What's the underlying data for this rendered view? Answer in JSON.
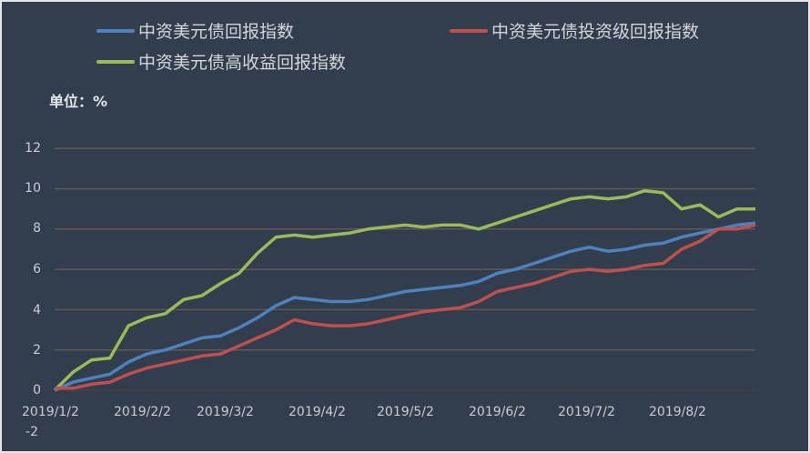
{
  "chart_data": {
    "type": "line",
    "title": "",
    "unit_label": "单位：%",
    "xlabel": "",
    "ylabel": "%",
    "ylim": [
      -2,
      12
    ],
    "yticks": [
      "12",
      "10",
      "8",
      "6",
      "4",
      "2",
      "0",
      "-2"
    ],
    "xticks": [
      "2019/1/2",
      "2019/2/2",
      "2019/3/2",
      "2019/4/2",
      "2019/5/2",
      "2019/6/2",
      "2019/7/2",
      "2019/8/2"
    ],
    "grid": true,
    "legend_position": "top",
    "x": [
      "2019/1/2",
      "2019/1/9",
      "2019/1/16",
      "2019/1/23",
      "2019/1/30",
      "2019/2/2",
      "2019/2/9",
      "2019/2/16",
      "2019/2/23",
      "2019/3/2",
      "2019/3/9",
      "2019/3/16",
      "2019/3/23",
      "2019/3/30",
      "2019/4/2",
      "2019/4/9",
      "2019/4/16",
      "2019/4/23",
      "2019/4/30",
      "2019/5/2",
      "2019/5/9",
      "2019/5/16",
      "2019/5/23",
      "2019/5/30",
      "2019/6/2",
      "2019/6/9",
      "2019/6/16",
      "2019/6/23",
      "2019/6/30",
      "2019/7/2",
      "2019/7/9",
      "2019/7/16",
      "2019/7/23",
      "2019/7/30",
      "2019/8/2",
      "2019/8/9",
      "2019/8/16",
      "2019/8/23",
      "2019/8/30"
    ],
    "series": [
      {
        "name": "中资美元债回报指数",
        "color": "#4f81bd",
        "values": [
          0.0,
          0.4,
          0.6,
          0.8,
          1.4,
          1.8,
          2.0,
          2.3,
          2.6,
          2.7,
          3.1,
          3.6,
          4.2,
          4.6,
          4.5,
          4.4,
          4.4,
          4.5,
          4.7,
          4.9,
          5.0,
          5.1,
          5.2,
          5.4,
          5.8,
          6.0,
          6.3,
          6.6,
          6.9,
          7.1,
          6.9,
          7.0,
          7.2,
          7.3,
          7.6,
          7.8,
          8.0,
          8.2,
          8.3
        ]
      },
      {
        "name": "中资美元债投资级回报指数",
        "color": "#c0504d",
        "values": [
          0.1,
          0.1,
          0.3,
          0.4,
          0.8,
          1.1,
          1.3,
          1.5,
          1.7,
          1.8,
          2.2,
          2.6,
          3.0,
          3.5,
          3.3,
          3.2,
          3.2,
          3.3,
          3.5,
          3.7,
          3.9,
          4.0,
          4.1,
          4.4,
          4.9,
          5.1,
          5.3,
          5.6,
          5.9,
          6.0,
          5.9,
          6.0,
          6.2,
          6.3,
          7.0,
          7.4,
          8.0,
          8.0,
          8.2
        ]
      },
      {
        "name": "中资美元债高收益回报指数",
        "color": "#9bbb59",
        "values": [
          0.0,
          0.9,
          1.5,
          1.6,
          3.2,
          3.6,
          3.8,
          4.5,
          4.7,
          5.3,
          5.8,
          6.8,
          7.6,
          7.7,
          7.6,
          7.7,
          7.8,
          8.0,
          8.1,
          8.2,
          8.1,
          8.2,
          8.2,
          8.0,
          8.3,
          8.6,
          8.9,
          9.2,
          9.5,
          9.6,
          9.5,
          9.6,
          9.9,
          9.8,
          9.0,
          9.2,
          8.6,
          9.0,
          9.0
        ]
      }
    ]
  },
  "legend": [
    {
      "label": "中资美元债回报指数",
      "color": "#4f81bd"
    },
    {
      "label": "中资美元债投资级回报指数",
      "color": "#c0504d"
    },
    {
      "label": "中资美元债高收益回报指数",
      "color": "#9bbb59"
    }
  ],
  "colors": {
    "background": "#323e4e",
    "gridline": "#5e5a55",
    "text": "#c9cdd3"
  }
}
